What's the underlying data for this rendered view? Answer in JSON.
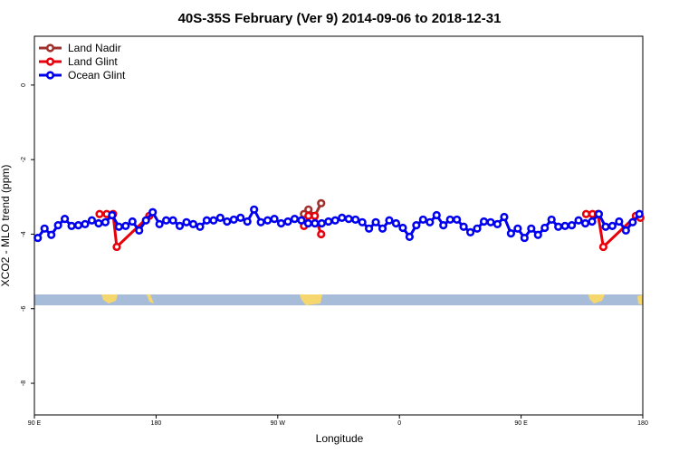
{
  "chart_data": {
    "type": "line",
    "title": "40S-35S February (Ver 9)   2014-09-06 to 2018-12-31",
    "x_label": "Longitude",
    "y_label": "XCO2 - MLO trend (ppm)",
    "xlim": [
      90,
      540
    ],
    "ylim": [
      -8.85,
      1.31
    ],
    "xticks": [
      {
        "value": 90,
        "label": "90 E"
      },
      {
        "value": 180,
        "label": "180"
      },
      {
        "value": 270,
        "label": "90 W"
      },
      {
        "value": 360,
        "label": "0"
      },
      {
        "value": 450,
        "label": "90 E"
      },
      {
        "value": 540,
        "label": "180"
      }
    ],
    "yticks": [
      0,
      -2,
      -4,
      -6,
      -8
    ],
    "legend": "top-left",
    "series": [
      {
        "name": "Land Nadir",
        "color": "#a0302c",
        "x": [
          289.4,
          292.7,
          297.4,
          302.1
        ],
        "values": [
          -3.46,
          -3.34,
          -3.51,
          -3.17
        ]
      },
      {
        "name": "Land Glint",
        "color": "#e8000b",
        "x": [
          138.2,
          143.5,
          148.2,
          150.9,
          175.0,
          null,
          289.4,
          292.7,
          297.4,
          302.1,
          null,
          498.1,
          502.8,
          506.8,
          510.8,
          534.9,
          538.2
        ],
        "values": [
          -3.46,
          -3.46,
          -3.46,
          -4.34,
          -3.51,
          null,
          -3.78,
          -3.51,
          -3.51,
          -4.0,
          null,
          -3.46,
          -3.46,
          -3.46,
          -4.34,
          -3.51,
          -3.56
        ]
      },
      {
        "name": "Ocean Glint",
        "color": "#0000ee",
        "x": [
          92.5,
          97.5,
          102.5,
          107.5,
          112.5,
          117.5,
          122.5,
          127.5,
          132.5,
          137.5,
          142.5,
          147.5,
          152.5,
          157.5,
          162.5,
          167.5,
          172.5,
          177.5,
          182.5,
          187.5,
          192.5,
          197.5,
          202.5,
          207.5,
          212.5,
          217.5,
          222.5,
          227.5,
          232.5,
          237.5,
          242.5,
          247.5,
          252.5,
          257.5,
          262.5,
          267.5,
          272.5,
          277.5,
          282.5,
          287.5,
          292.5,
          297.5,
          302.5,
          307.5,
          312.5,
          317.5,
          322.5,
          327.5,
          332.5,
          337.5,
          342.5,
          347.5,
          352.5,
          357.5,
          362.5,
          367.5,
          372.5,
          377.5,
          382.5,
          387.5,
          392.5,
          397.5,
          402.5,
          407.5,
          412.5,
          417.5,
          422.5,
          427.5,
          432.5,
          437.5,
          442.5,
          447.5,
          452.5,
          457.5,
          462.5,
          467.5,
          472.5,
          477.5,
          482.5,
          487.5,
          492.5,
          497.5,
          502.5,
          507.5,
          512.5,
          517.5,
          522.5,
          527.5,
          532.5,
          537.5
        ],
        "values": [
          -4.1,
          -3.85,
          -4.02,
          -3.76,
          -3.59,
          -3.78,
          -3.76,
          -3.73,
          -3.63,
          -3.71,
          -3.68,
          -3.49,
          -3.8,
          -3.78,
          -3.66,
          -3.9,
          -3.63,
          -3.41,
          -3.73,
          -3.63,
          -3.63,
          -3.78,
          -3.68,
          -3.73,
          -3.8,
          -3.63,
          -3.63,
          -3.56,
          -3.66,
          -3.61,
          -3.56,
          -3.66,
          -3.34,
          -3.68,
          -3.63,
          -3.59,
          -3.71,
          -3.66,
          -3.59,
          -3.63,
          -3.71,
          -3.71,
          -3.71,
          -3.66,
          -3.63,
          -3.56,
          -3.59,
          -3.61,
          -3.68,
          -3.85,
          -3.68,
          -3.85,
          -3.63,
          -3.71,
          -3.83,
          -4.07,
          -3.76,
          -3.61,
          -3.68,
          -3.49,
          -3.76,
          -3.61,
          -3.61,
          -3.8,
          -3.95,
          -3.85,
          -3.66,
          -3.68,
          -3.73,
          -3.54,
          -3.98,
          -3.85,
          -4.1,
          -3.85,
          -4.02,
          -3.83,
          -3.61,
          -3.8,
          -3.78,
          -3.76,
          -3.63,
          -3.71,
          -3.66,
          -3.46,
          -3.8,
          -3.78,
          -3.66,
          -3.9,
          -3.68,
          -3.46
        ]
      }
    ]
  }
}
